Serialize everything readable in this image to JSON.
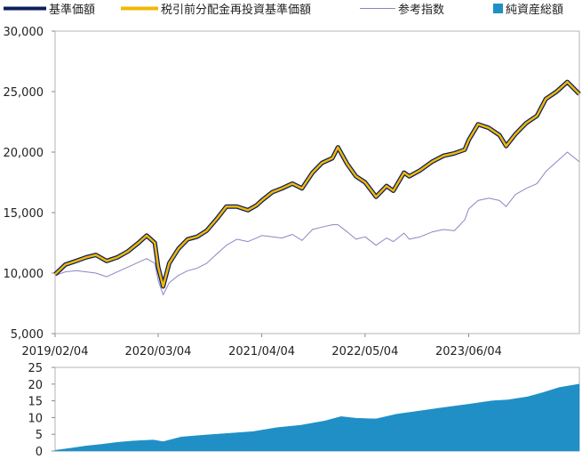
{
  "chart_data": [
    {
      "type": "line",
      "legend": [
        {
          "name": "基準価額",
          "color": "#0b1f5c",
          "marker": "line"
        },
        {
          "name": "税引前分配金再投資基準価額",
          "color": "#f2b705",
          "marker": "line"
        },
        {
          "name": "参考指数",
          "color": "#8b86c4",
          "marker": "thin-line"
        },
        {
          "name": "純資産総額",
          "color": "#1f8fc6",
          "marker": "square"
        }
      ],
      "ylim": [
        5000,
        30000
      ],
      "y_ticks": [
        "30,000",
        "25,000",
        "20,000",
        "15,000",
        "10,000",
        "5,000"
      ],
      "y_tick_values": [
        30000,
        25000,
        20000,
        15000,
        10000,
        5000
      ],
      "x_tick_labels": [
        "2019/02/04",
        "2020/03/04",
        "2021/04/04",
        "2022/05/04",
        "2023/06/04"
      ],
      "x_tick_dates": [
        "2019-02-04",
        "2020-03-04",
        "2021-04-04",
        "2022-05-04",
        "2023-06-04"
      ],
      "x_range": [
        "2019-02-04",
        "2024-07-31"
      ],
      "grid": false,
      "legend_position": "top",
      "series": [
        {
          "name": "基準価額",
          "x": [
            "2019-02-04",
            "2019-03-15",
            "2019-04-25",
            "2019-06-03",
            "2019-07-10",
            "2019-08-20",
            "2019-09-30",
            "2019-11-10",
            "2019-12-20",
            "2020-01-20",
            "2020-02-20",
            "2020-03-04",
            "2020-03-23",
            "2020-04-15",
            "2020-05-20",
            "2020-06-25",
            "2020-07-30",
            "2020-09-05",
            "2020-10-15",
            "2020-11-20",
            "2020-12-30",
            "2021-02-10",
            "2021-03-15",
            "2021-04-04",
            "2021-05-15",
            "2021-06-20",
            "2021-07-30",
            "2021-09-05",
            "2021-10-15",
            "2021-11-20",
            "2021-12-30",
            "2022-01-20",
            "2022-02-25",
            "2022-03-30",
            "2022-05-04",
            "2022-06-15",
            "2022-07-25",
            "2022-08-20",
            "2022-09-30",
            "2022-10-20",
            "2022-12-01",
            "2023-01-15",
            "2023-02-28",
            "2023-04-10",
            "2023-05-20",
            "2023-06-04",
            "2023-07-10",
            "2023-08-20",
            "2023-09-30",
            "2023-10-25",
            "2023-11-30",
            "2024-01-10",
            "2024-02-20",
            "2024-03-25",
            "2024-05-05",
            "2024-06-15",
            "2024-07-31"
          ],
          "y": [
            9900,
            10700,
            11000,
            11300,
            11500,
            11000,
            11300,
            11800,
            12500,
            13100,
            12500,
            10500,
            8900,
            10800,
            12000,
            12800,
            13000,
            13500,
            14500,
            15500,
            15500,
            15200,
            15600,
            16000,
            16700,
            17000,
            17400,
            17000,
            18300,
            19100,
            19500,
            20400,
            19000,
            18000,
            17500,
            16300,
            17200,
            16800,
            18300,
            18000,
            18500,
            19200,
            19700,
            19900,
            20200,
            21000,
            22300,
            22000,
            21400,
            20500,
            21500,
            22400,
            23000,
            24400,
            25000,
            25800,
            24800
          ]
        },
        {
          "name": "税引前分配金再投資基準価額",
          "x": [
            "2019-02-04",
            "2019-03-15",
            "2019-04-25",
            "2019-06-03",
            "2019-07-10",
            "2019-08-20",
            "2019-09-30",
            "2019-11-10",
            "2019-12-20",
            "2020-01-20",
            "2020-02-20",
            "2020-03-04",
            "2020-03-23",
            "2020-04-15",
            "2020-05-20",
            "2020-06-25",
            "2020-07-30",
            "2020-09-05",
            "2020-10-15",
            "2020-11-20",
            "2020-12-30",
            "2021-02-10",
            "2021-03-15",
            "2021-04-04",
            "2021-05-15",
            "2021-06-20",
            "2021-07-30",
            "2021-09-05",
            "2021-10-15",
            "2021-11-20",
            "2021-12-30",
            "2022-01-20",
            "2022-02-25",
            "2022-03-30",
            "2022-05-04",
            "2022-06-15",
            "2022-07-25",
            "2022-08-20",
            "2022-09-30",
            "2022-10-20",
            "2022-12-01",
            "2023-01-15",
            "2023-02-28",
            "2023-04-10",
            "2023-05-20",
            "2023-06-04",
            "2023-07-10",
            "2023-08-20",
            "2023-09-30",
            "2023-10-25",
            "2023-11-30",
            "2024-01-10",
            "2024-02-20",
            "2024-03-25",
            "2024-05-05",
            "2024-06-15",
            "2024-07-31"
          ],
          "y": [
            9900,
            10700,
            11000,
            11300,
            11500,
            11000,
            11300,
            11800,
            12500,
            13100,
            12500,
            10500,
            8900,
            10800,
            12000,
            12800,
            13000,
            13500,
            14500,
            15500,
            15500,
            15200,
            15600,
            16000,
            16700,
            17000,
            17400,
            17000,
            18300,
            19100,
            19500,
            20400,
            19000,
            18000,
            17500,
            16300,
            17200,
            16800,
            18300,
            18000,
            18500,
            19200,
            19700,
            19900,
            20200,
            21000,
            22300,
            22000,
            21400,
            20500,
            21500,
            22400,
            23000,
            24400,
            25000,
            25800,
            24800
          ]
        },
        {
          "name": "参考指数",
          "x": [
            "2019-02-04",
            "2019-03-15",
            "2019-04-25",
            "2019-06-03",
            "2019-07-10",
            "2019-08-20",
            "2019-09-30",
            "2019-11-10",
            "2019-12-20",
            "2020-01-20",
            "2020-02-20",
            "2020-03-04",
            "2020-03-23",
            "2020-04-15",
            "2020-05-20",
            "2020-06-25",
            "2020-07-30",
            "2020-09-05",
            "2020-10-15",
            "2020-11-20",
            "2020-12-30",
            "2021-02-10",
            "2021-03-15",
            "2021-04-04",
            "2021-05-15",
            "2021-06-20",
            "2021-07-30",
            "2021-09-05",
            "2021-10-15",
            "2021-11-20",
            "2021-12-30",
            "2022-01-20",
            "2022-02-25",
            "2022-03-30",
            "2022-05-04",
            "2022-06-15",
            "2022-07-25",
            "2022-08-20",
            "2022-09-30",
            "2022-10-20",
            "2022-12-01",
            "2023-01-15",
            "2023-02-28",
            "2023-04-10",
            "2023-05-20",
            "2023-06-04",
            "2023-07-10",
            "2023-08-20",
            "2023-09-30",
            "2023-10-25",
            "2023-11-30",
            "2024-01-10",
            "2024-02-20",
            "2024-03-25",
            "2024-05-05",
            "2024-06-15",
            "2024-07-31"
          ],
          "y": [
            9800,
            10100,
            10200,
            10100,
            10000,
            9700,
            10100,
            10500,
            10900,
            11200,
            10800,
            9400,
            8200,
            9200,
            9800,
            10200,
            10400,
            10800,
            11600,
            12300,
            12800,
            12600,
            12900,
            13100,
            13000,
            12900,
            13200,
            12700,
            13600,
            13800,
            14000,
            14000,
            13400,
            12800,
            13000,
            12300,
            12900,
            12600,
            13300,
            12800,
            13000,
            13400,
            13600,
            13500,
            14400,
            15300,
            16000,
            16200,
            16000,
            15500,
            16500,
            17000,
            17400,
            18400,
            19200,
            20000,
            19200
          ]
        }
      ]
    },
    {
      "type": "area",
      "ylim": [
        0,
        25
      ],
      "y_ticks": [
        "25",
        "20",
        "15",
        "10",
        "5",
        "0"
      ],
      "y_tick_values": [
        25,
        20,
        15,
        10,
        5,
        0
      ],
      "x_range": [
        "2019-02-04",
        "2024-07-31"
      ],
      "grid": false,
      "series": [
        {
          "name": "純資産総額",
          "x": [
            "2019-02-04",
            "2019-04-01",
            "2019-06-01",
            "2019-08-01",
            "2019-10-01",
            "2019-12-01",
            "2020-02-15",
            "2020-03-23",
            "2020-06-01",
            "2020-09-01",
            "2020-12-01",
            "2021-03-01",
            "2021-06-01",
            "2021-09-01",
            "2021-12-01",
            "2022-02-01",
            "2022-04-01",
            "2022-06-15",
            "2022-09-01",
            "2022-12-01",
            "2023-03-01",
            "2023-06-04",
            "2023-09-01",
            "2023-11-01",
            "2024-01-15",
            "2024-03-15",
            "2024-05-15",
            "2024-07-31"
          ],
          "y": [
            0.2,
            0.8,
            1.5,
            2.0,
            2.6,
            3.0,
            3.3,
            2.8,
            4.2,
            4.8,
            5.3,
            5.8,
            7.0,
            7.7,
            9.0,
            10.3,
            9.8,
            9.6,
            11.0,
            12.0,
            13.0,
            14.0,
            15.0,
            15.3,
            16.2,
            17.5,
            19.0,
            20.0
          ]
        }
      ]
    }
  ]
}
